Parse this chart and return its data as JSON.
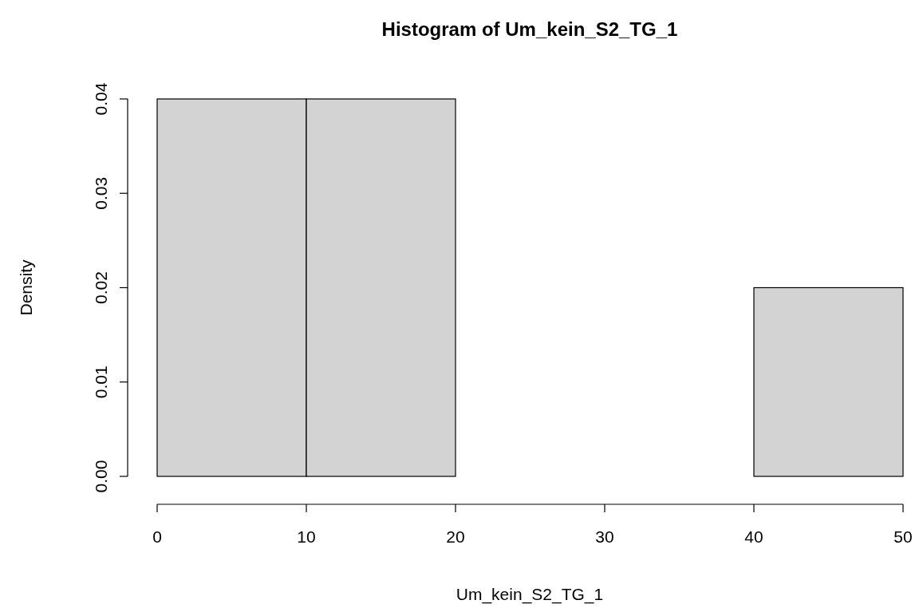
{
  "chart_data": {
    "type": "histogram",
    "title": "Histogram of Um_kein_S2_TG_1",
    "xlabel": "Um_kein_S2_TG_1",
    "ylabel": "Density",
    "bins": [
      0,
      10,
      20,
      30,
      40,
      50
    ],
    "values": [
      0.04,
      0.04,
      0,
      0,
      0.02
    ],
    "color": "#d3d3d3",
    "xlim": [
      0,
      50
    ],
    "xticks": [
      0,
      10,
      20,
      30,
      40,
      50
    ],
    "ylim": [
      0,
      0.04
    ],
    "yticks": [
      {
        "value": 0,
        "label": "0.00"
      },
      {
        "value": 0.01,
        "label": "0.01"
      },
      {
        "value": 0.02,
        "label": "0.02"
      },
      {
        "value": 0.03,
        "label": "0.03"
      },
      {
        "value": 0.04,
        "label": "0.04"
      }
    ],
    "grid": false
  }
}
